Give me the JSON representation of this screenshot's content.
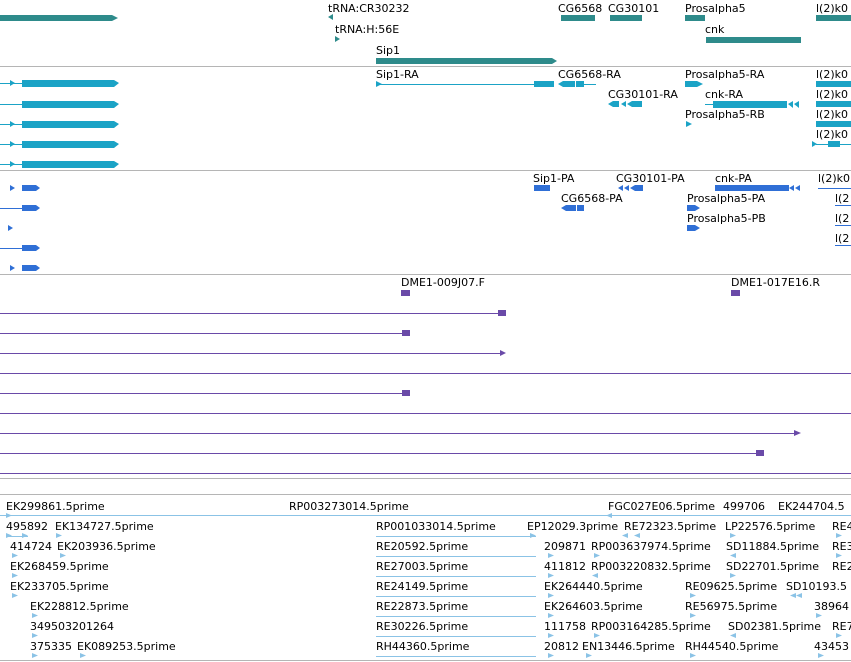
{
  "colors": {
    "gene": "#2e8b8b",
    "transcript": "#1ba3c6",
    "protein": "#2f6fd6",
    "clone": "#6a4aa8",
    "est": "#8bc3e6",
    "separator": "#b5b5b5"
  },
  "tracks": {
    "genes": {
      "labels": [
        {
          "text": "tRNA:CR30232"
        },
        {
          "text": "tRNA:H:56E"
        },
        {
          "text": "Sip1"
        },
        {
          "text": "CG6568"
        },
        {
          "text": "CG30101"
        },
        {
          "text": "Prosalpha5"
        },
        {
          "text": "cnk"
        },
        {
          "text": "l(2)k0"
        }
      ]
    },
    "transcripts": {
      "labels": [
        {
          "text": "Sip1-RA"
        },
        {
          "text": "CG6568-RA"
        },
        {
          "text": "CG30101-RA"
        },
        {
          "text": "Prosalpha5-RA"
        },
        {
          "text": "cnk-RA"
        },
        {
          "text": "Prosalpha5-RB"
        },
        {
          "text": "l(2)k0"
        },
        {
          "text": "l(2)k0"
        },
        {
          "text": "l(2)k0"
        },
        {
          "text": "l(2)k0"
        }
      ]
    },
    "proteins": {
      "labels": [
        {
          "text": "Sip1-PA"
        },
        {
          "text": "CG30101-PA"
        },
        {
          "text": "cnk-PA"
        },
        {
          "text": "CG6568-PA"
        },
        {
          "text": "Prosalpha5-PA"
        },
        {
          "text": "Prosalpha5-PB"
        },
        {
          "text": "l(2)k0"
        },
        {
          "text": "l(2"
        },
        {
          "text": "l(2"
        },
        {
          "text": "l(2"
        }
      ]
    },
    "clones": {
      "labels": [
        {
          "text": "DME1-009J07.F"
        },
        {
          "text": "DME1-017E16.R"
        }
      ]
    },
    "ests": {
      "labels": [
        {
          "text": "EK299861.5prime"
        },
        {
          "text": "RP003273014.5prime"
        },
        {
          "text": "FGC027E06.5prime"
        },
        {
          "text": "499706"
        },
        {
          "text": "EK244704.5"
        },
        {
          "text": "495892"
        },
        {
          "text": "EK134727.5prime"
        },
        {
          "text": "RP001033014.5prime"
        },
        {
          "text": "EP12029.3prime"
        },
        {
          "text": "RE72323.5prime"
        },
        {
          "text": "LP22576.5prime"
        },
        {
          "text": "RE4"
        },
        {
          "text": "414724"
        },
        {
          "text": "EK203936.5prime"
        },
        {
          "text": "RE20592.5prime"
        },
        {
          "text": "209871"
        },
        {
          "text": "RP003637974.5prime"
        },
        {
          "text": "SD11884.5prime"
        },
        {
          "text": "RE3"
        },
        {
          "text": "EK268459.5prime"
        },
        {
          "text": "RE27003.5prime"
        },
        {
          "text": "411812"
        },
        {
          "text": "RP003220832.5prime"
        },
        {
          "text": "SD22701.5prime"
        },
        {
          "text": "RE2"
        },
        {
          "text": "EK233705.5prime"
        },
        {
          "text": "RE24149.5prime"
        },
        {
          "text": "EK264440.5prime"
        },
        {
          "text": "RE09625.5prime"
        },
        {
          "text": "SD10193.5"
        },
        {
          "text": "EK228812.5prime"
        },
        {
          "text": "RE22873.5prime"
        },
        {
          "text": "EK264603.5prime"
        },
        {
          "text": "RE56975.5prime"
        },
        {
          "text": "38964"
        },
        {
          "text": "349503201264"
        },
        {
          "text": "RE30226.5prime"
        },
        {
          "text": "111758"
        },
        {
          "text": "RP003164285.5prime"
        },
        {
          "text": "SD02381.5prime"
        },
        {
          "text": "RE7"
        },
        {
          "text": "375335"
        },
        {
          "text": "EK089253.5prime"
        },
        {
          "text": "RH44360.5prime"
        },
        {
          "text": "20812"
        },
        {
          "text": "EN13446.5prime"
        },
        {
          "text": "RH44540.5prime"
        },
        {
          "text": "43453"
        }
      ]
    }
  }
}
